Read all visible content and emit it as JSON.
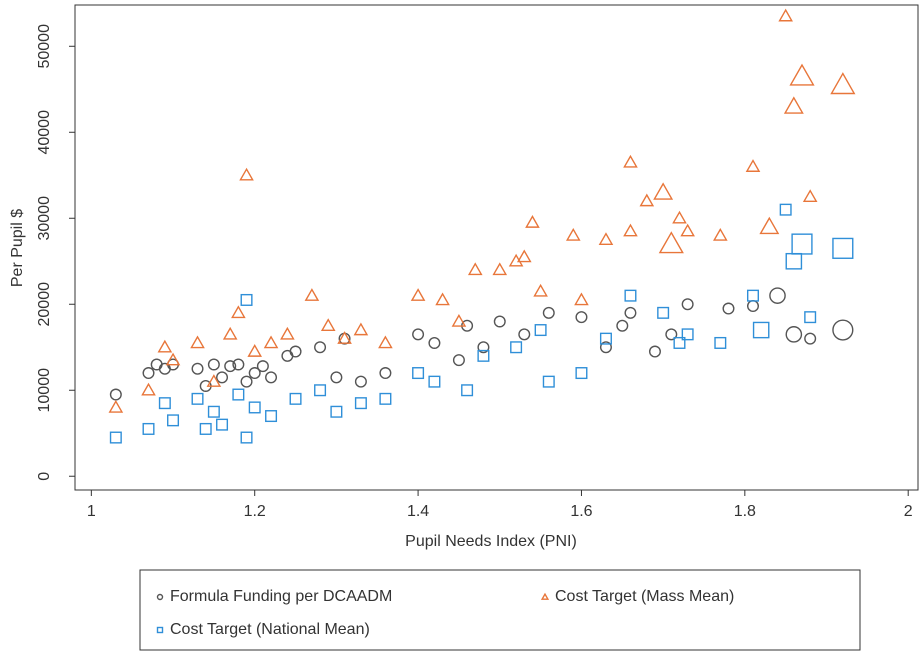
{
  "chart_data": {
    "type": "scatter",
    "xlabel": "Pupil Needs Index (PNI)",
    "ylabel": "Per Pupil $",
    "xlim": [
      0.98,
      2.012
    ],
    "ylim": [
      -1600,
      54800
    ],
    "xticks": [
      1,
      1.2,
      1.4,
      1.6,
      1.8,
      2
    ],
    "yticks": [
      0,
      10000,
      20000,
      30000,
      40000,
      50000
    ],
    "series": [
      {
        "name": "Formula Funding per DCAADM",
        "color": "#555555",
        "marker": "circle",
        "x": [
          1.03,
          1.07,
          1.08,
          1.09,
          1.1,
          1.13,
          1.14,
          1.15,
          1.16,
          1.17,
          1.18,
          1.19,
          1.2,
          1.21,
          1.22,
          1.24,
          1.25,
          1.28,
          1.3,
          1.31,
          1.33,
          1.36,
          1.4,
          1.42,
          1.45,
          1.46,
          1.48,
          1.5,
          1.53,
          1.56,
          1.6,
          1.63,
          1.65,
          1.66,
          1.69,
          1.71,
          1.73,
          1.78,
          1.81,
          1.84,
          1.86,
          1.88,
          1.92
        ],
        "values": [
          9500,
          12000,
          13000,
          12500,
          13000,
          12500,
          10500,
          13000,
          11500,
          12800,
          13000,
          11000,
          12000,
          12800,
          11500,
          14000,
          14500,
          15000,
          11500,
          16000,
          11000,
          12000,
          16500,
          15500,
          13500,
          17500,
          15000,
          18000,
          16500,
          19000,
          18500,
          15000,
          17500,
          19000,
          14500,
          16500,
          20000,
          19500,
          19800,
          21000,
          16500,
          16000,
          17000
        ],
        "sizes": [
          1,
          1,
          1,
          1,
          1,
          1,
          1,
          1,
          1,
          1,
          1,
          1,
          1,
          1,
          1,
          1,
          1,
          1,
          1,
          1,
          1,
          1,
          1,
          1,
          1,
          1,
          1,
          1,
          1,
          1,
          1,
          1,
          1,
          1,
          1,
          1,
          1,
          1,
          1,
          2,
          2,
          1,
          3
        ]
      },
      {
        "name": "Cost Target (Mass Mean)",
        "color": "#e8763a",
        "marker": "triangle",
        "x": [
          1.03,
          1.07,
          1.09,
          1.1,
          1.13,
          1.15,
          1.17,
          1.18,
          1.19,
          1.2,
          1.22,
          1.24,
          1.27,
          1.29,
          1.31,
          1.33,
          1.36,
          1.4,
          1.43,
          1.45,
          1.47,
          1.5,
          1.52,
          1.53,
          1.54,
          1.55,
          1.59,
          1.6,
          1.63,
          1.66,
          1.66,
          1.68,
          1.7,
          1.71,
          1.72,
          1.73,
          1.77,
          1.81,
          1.83,
          1.85,
          1.86,
          1.87,
          1.88,
          1.92
        ],
        "values": [
          8000,
          10000,
          15000,
          13500,
          15500,
          11000,
          16500,
          19000,
          35000,
          14500,
          15500,
          16500,
          21000,
          17500,
          16000,
          17000,
          15500,
          21000,
          20500,
          18000,
          24000,
          24000,
          25000,
          25500,
          29500,
          21500,
          28000,
          20500,
          27500,
          36500,
          28500,
          32000,
          33000,
          27000,
          30000,
          28500,
          28000,
          36000,
          29000,
          53500,
          43000,
          46500,
          32500,
          45500
        ],
        "sizes": [
          1,
          1,
          1,
          1,
          1,
          1,
          1,
          1,
          1,
          1,
          1,
          1,
          1,
          1,
          1,
          1,
          1,
          1,
          1,
          1,
          1,
          1,
          1,
          1,
          1,
          1,
          1,
          1,
          1,
          1,
          1,
          1,
          2,
          3,
          1,
          1,
          1,
          1,
          2,
          1,
          2,
          3,
          1,
          3
        ]
      },
      {
        "name": "Cost Target (National Mean)",
        "color": "#2f8fd8",
        "marker": "square",
        "x": [
          1.03,
          1.07,
          1.09,
          1.1,
          1.13,
          1.14,
          1.15,
          1.16,
          1.18,
          1.19,
          1.19,
          1.2,
          1.22,
          1.25,
          1.28,
          1.3,
          1.33,
          1.36,
          1.4,
          1.42,
          1.46,
          1.48,
          1.52,
          1.55,
          1.56,
          1.6,
          1.63,
          1.66,
          1.7,
          1.72,
          1.73,
          1.77,
          1.81,
          1.82,
          1.85,
          1.86,
          1.87,
          1.88,
          1.92
        ],
        "values": [
          4500,
          5500,
          8500,
          6500,
          9000,
          5500,
          7500,
          6000,
          9500,
          4500,
          20500,
          8000,
          7000,
          9000,
          10000,
          7500,
          8500,
          9000,
          12000,
          11000,
          10000,
          14000,
          15000,
          17000,
          11000,
          12000,
          16000,
          21000,
          19000,
          15500,
          16500,
          15500,
          21000,
          17000,
          31000,
          25000,
          27000,
          18500,
          26500
        ],
        "sizes": [
          1,
          1,
          1,
          1,
          1,
          1,
          1,
          1,
          1,
          1,
          1,
          1,
          1,
          1,
          1,
          1,
          1,
          1,
          1,
          1,
          1,
          1,
          1,
          1,
          1,
          1,
          1,
          1,
          1,
          1,
          1,
          1,
          1,
          2,
          1,
          2,
          3,
          1,
          3
        ]
      }
    ]
  }
}
